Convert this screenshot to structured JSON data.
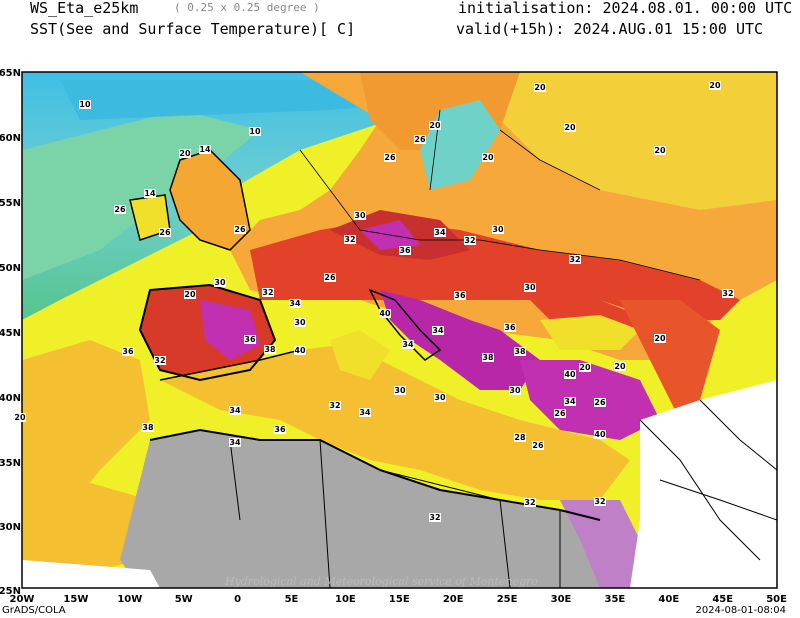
{
  "header": {
    "model": "WS_Eta_e25km",
    "resolution": "( 0.25 x 0.25 degree )",
    "field": "SST(See and Surface Temperature)[ C]",
    "init": "initialisation: 2024.08.01. 00:00 UTC",
    "valid": "valid(+15h): 2024.AUG.01 15:00 UTC"
  },
  "axes": {
    "lat_labels": [
      "65N",
      "60N",
      "55N",
      "50N",
      "45N",
      "40N",
      "35N",
      "30N",
      "25N"
    ],
    "lon_labels": [
      "20W",
      "15W",
      "10W",
      "5W",
      "0",
      "5E",
      "10E",
      "15E",
      "20E",
      "25E",
      "30E",
      "35E",
      "40E",
      "45E",
      "50E"
    ]
  },
  "watermark": "Hydrological and Meteorological service of Montenegro",
  "footer": {
    "left": "GrADS/COLA",
    "right": "2024-08-01-08:04"
  },
  "contour_labels": [
    "10",
    "10",
    "14",
    "20",
    "14",
    "20",
    "20",
    "26",
    "20",
    "20",
    "20",
    "20",
    "26",
    "26",
    "30",
    "32",
    "32",
    "34",
    "32",
    "30",
    "30",
    "32",
    "32",
    "34",
    "36",
    "36",
    "38",
    "40",
    "40",
    "34",
    "34",
    "36",
    "38",
    "30",
    "20",
    "20",
    "26",
    "28",
    "30",
    "32",
    "34",
    "36",
    "38",
    "40",
    "32",
    "40",
    "34",
    "36",
    "26",
    "36",
    "32",
    "38",
    "34",
    "30",
    "26",
    "20",
    "20",
    "26",
    "26",
    "30",
    "30",
    "32",
    "32",
    "34",
    "26",
    "20"
  ]
}
